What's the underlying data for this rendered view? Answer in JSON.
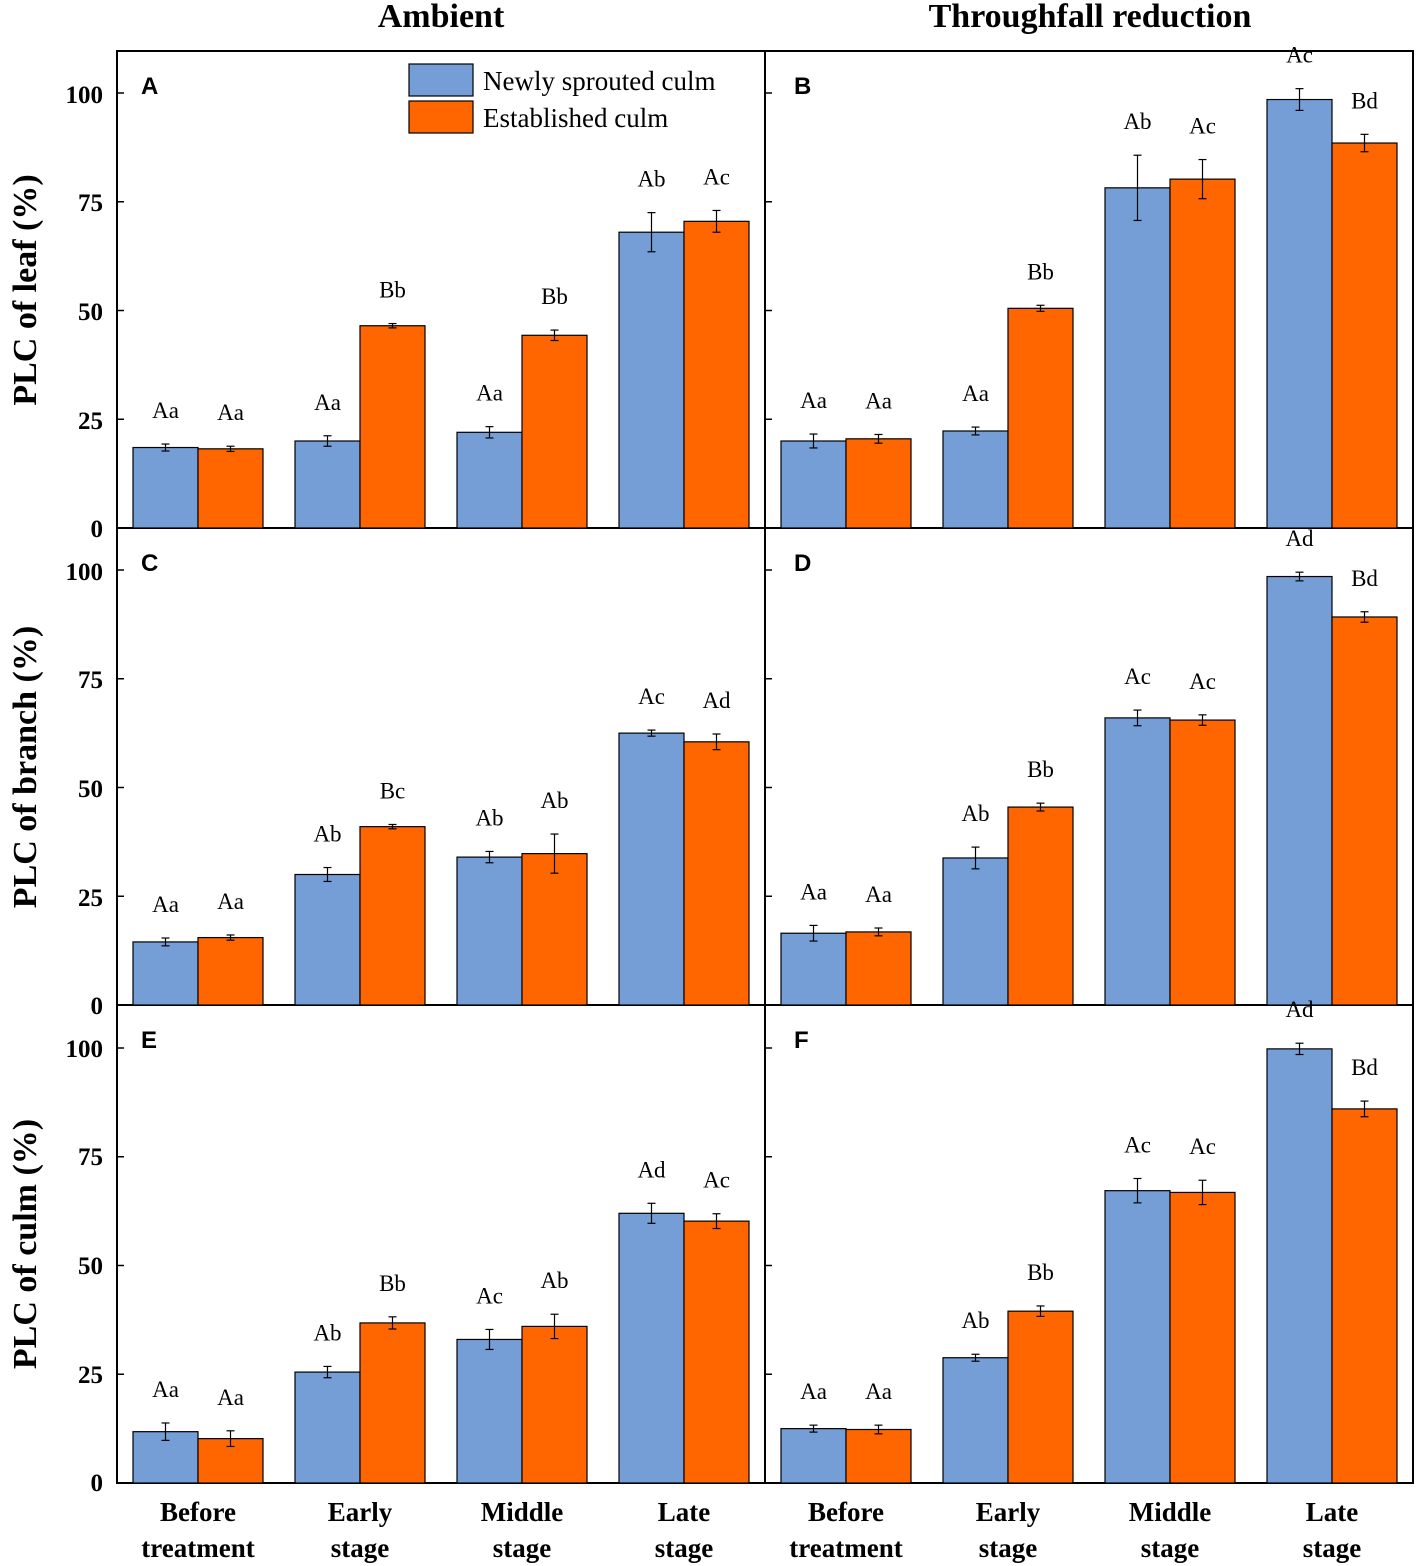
{
  "columns": [
    "Ambient",
    "Throughfall reduction"
  ],
  "row_labels": [
    "PLC  of  leaf (%)",
    "PLC of branch (%)",
    "PLC of culm (%)"
  ],
  "x_tick_labels": [
    [
      "Before",
      "treatment"
    ],
    [
      "Early",
      "stage"
    ],
    [
      "Middle",
      "stage"
    ],
    [
      "Late",
      "stage"
    ]
  ],
  "y_ticks": [
    "0",
    "25",
    "50",
    "75",
    "100"
  ],
  "legend": [
    {
      "label": "Newly sprouted culm",
      "color": "#759dd6"
    },
    {
      "label": "Established  culm",
      "color": "#ff6600"
    }
  ],
  "colors": {
    "newly": "#759dd6",
    "established": "#ff6600",
    "axis": "#000000"
  },
  "chart_data": [
    {
      "type": "bar",
      "panel": "A",
      "column": "Ambient",
      "ylabel": "PLC  of  leaf (%)",
      "ylim": [
        0,
        110
      ],
      "categories": [
        "Before treatment",
        "Early stage",
        "Middle stage",
        "Late stage"
      ],
      "series": [
        {
          "name": "Newly sprouted culm",
          "values": [
            18.5,
            20,
            22,
            68
          ],
          "errors": [
            0.8,
            1.2,
            1.3,
            4.5
          ],
          "labels": [
            "Aa",
            "Aa",
            "Aa",
            "Ab"
          ]
        },
        {
          "name": "Established  culm",
          "values": [
            18.2,
            46.5,
            44.3,
            70.5
          ],
          "errors": [
            0.6,
            0.5,
            1.2,
            2.5
          ],
          "labels": [
            "Aa",
            "Bb",
            "Bb",
            "Ac"
          ]
        }
      ]
    },
    {
      "type": "bar",
      "panel": "B",
      "column": "Throughfall reduction",
      "ylabel": "PLC  of  leaf (%)",
      "ylim": [
        0,
        110
      ],
      "categories": [
        "Before treatment",
        "Early stage",
        "Middle stage",
        "Late stage"
      ],
      "series": [
        {
          "name": "Newly sprouted culm",
          "values": [
            20,
            22.3,
            78.2,
            98.5
          ],
          "errors": [
            1.6,
            0.9,
            7.5,
            2.5
          ],
          "labels": [
            "Aa",
            "Aa",
            "Ab",
            "Ac"
          ]
        },
        {
          "name": "Established  culm",
          "values": [
            20.5,
            50.5,
            80.2,
            88.5
          ],
          "errors": [
            1.0,
            0.7,
            4.5,
            2.0
          ],
          "labels": [
            "Aa",
            "Bb",
            "Ac",
            "Bd"
          ]
        }
      ]
    },
    {
      "type": "bar",
      "panel": "C",
      "column": "Ambient",
      "ylabel": "PLC of branch (%)",
      "ylim": [
        0,
        110
      ],
      "categories": [
        "Before treatment",
        "Early stage",
        "Middle stage",
        "Late stage"
      ],
      "series": [
        {
          "name": "Newly sprouted culm",
          "values": [
            14.5,
            30,
            34,
            62.5
          ],
          "errors": [
            0.9,
            1.6,
            1.3,
            0.7
          ],
          "labels": [
            "Aa",
            "Ab",
            "Ab",
            "Ac"
          ]
        },
        {
          "name": "Established  culm",
          "values": [
            15.5,
            41,
            34.8,
            60.5
          ],
          "errors": [
            0.6,
            0.5,
            4.5,
            1.8
          ],
          "labels": [
            "Aa",
            "Bc",
            "Ab",
            "Ad"
          ]
        }
      ]
    },
    {
      "type": "bar",
      "panel": "D",
      "column": "Throughfall reduction",
      "ylabel": "PLC of branch (%)",
      "ylim": [
        0,
        110
      ],
      "categories": [
        "Before treatment",
        "Early stage",
        "Middle stage",
        "Late stage"
      ],
      "series": [
        {
          "name": "Newly sprouted culm",
          "values": [
            16.5,
            33.8,
            66,
            98.5
          ],
          "errors": [
            1.8,
            2.5,
            1.8,
            1.0
          ],
          "labels": [
            "Aa",
            "Ab",
            "Ac",
            "Ad"
          ]
        },
        {
          "name": "Established  culm",
          "values": [
            16.8,
            45.5,
            65.5,
            89.2
          ],
          "errors": [
            0.9,
            0.9,
            1.2,
            1.2
          ],
          "labels": [
            "Aa",
            "Bb",
            "Ac",
            "Bd"
          ]
        }
      ]
    },
    {
      "type": "bar",
      "panel": "E",
      "column": "Ambient",
      "ylabel": "PLC of culm (%)",
      "ylim": [
        0,
        110
      ],
      "categories": [
        "Before treatment",
        "Early stage",
        "Middle stage",
        "Late stage"
      ],
      "series": [
        {
          "name": "Newly sprouted culm",
          "values": [
            11.8,
            25.5,
            33,
            62
          ],
          "errors": [
            2.0,
            1.3,
            2.3,
            2.3
          ],
          "labels": [
            "Aa",
            "Ab",
            "Ac",
            "Ad"
          ]
        },
        {
          "name": "Established  culm",
          "values": [
            10.2,
            36.8,
            36,
            60.2
          ],
          "errors": [
            1.8,
            1.4,
            2.8,
            1.7
          ],
          "labels": [
            "Aa",
            "Bb",
            "Ab",
            "Ac"
          ]
        }
      ]
    },
    {
      "type": "bar",
      "panel": "F",
      "column": "Throughfall reduction",
      "ylabel": "PLC of culm (%)",
      "ylim": [
        0,
        110
      ],
      "categories": [
        "Before treatment",
        "Early stage",
        "Middle stage",
        "Late stage"
      ],
      "series": [
        {
          "name": "Newly sprouted culm",
          "values": [
            12.5,
            28.8,
            67.2,
            99.8
          ],
          "errors": [
            0.8,
            0.8,
            2.8,
            1.3
          ],
          "labels": [
            "Aa",
            "Ab",
            "Ac",
            "Ad"
          ]
        },
        {
          "name": "Established  culm",
          "values": [
            12.3,
            39.5,
            66.8,
            86
          ],
          "errors": [
            1.0,
            1.2,
            2.8,
            1.8
          ],
          "labels": [
            "Aa",
            "Bb",
            "Ac",
            "Bd"
          ]
        }
      ]
    }
  ]
}
